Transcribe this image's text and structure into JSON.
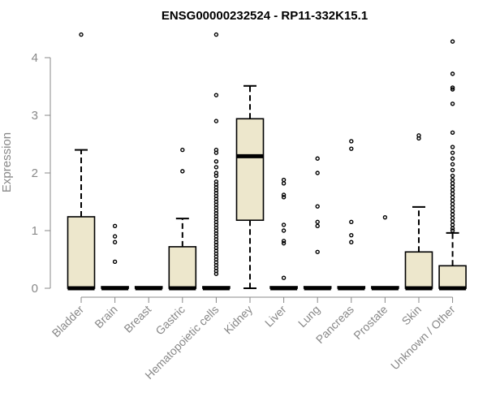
{
  "chart_data": {
    "type": "boxplot",
    "title": "ENSG00000232524 - RP11-332K15.1",
    "xlabel": "",
    "ylabel": "Expression",
    "ylim": [
      0,
      4.4
    ],
    "yticks": [
      0,
      1,
      2,
      3,
      4
    ],
    "box_fill": "#ede7cc",
    "grid": false,
    "categories": [
      "Bladder",
      "Brain",
      "Breast",
      "Gastric",
      "Hematopoietic cells",
      "Kidney",
      "Liver",
      "Lung",
      "Pancreas",
      "Prostate",
      "Skin",
      "Unknown / Other"
    ],
    "boxes": [
      {
        "name": "Bladder",
        "q1": 0,
        "median": 0,
        "q3": 1.24,
        "whisker_low": 0,
        "whisker_high": 2.4,
        "outliers": [
          4.4
        ]
      },
      {
        "name": "Brain",
        "q1": 0,
        "median": 0,
        "q3": 0,
        "whisker_low": 0,
        "whisker_high": 0,
        "outliers": [
          1.08,
          0.9,
          0.8,
          0.46
        ]
      },
      {
        "name": "Breast",
        "q1": 0,
        "median": 0,
        "q3": 0,
        "whisker_low": 0,
        "whisker_high": 0,
        "outliers": []
      },
      {
        "name": "Gastric",
        "q1": 0,
        "median": 0,
        "q3": 0.72,
        "whisker_low": 0,
        "whisker_high": 1.21,
        "outliers": [
          2.4,
          2.03
        ]
      },
      {
        "name": "Hematopoietic cells",
        "q1": 0,
        "median": 0,
        "q3": 0,
        "whisker_low": 0,
        "whisker_high": 0,
        "outliers": [
          4.4,
          3.35,
          2.9,
          2.4,
          2.35,
          2.2,
          2.1,
          2.0,
          1.95,
          1.85,
          1.8,
          1.75,
          1.7,
          1.65,
          1.6,
          1.55,
          1.5,
          1.45,
          1.4,
          1.35,
          1.3,
          1.25,
          1.2,
          1.15,
          1.1,
          1.05,
          1.0,
          0.95,
          0.9,
          0.85,
          0.8,
          0.75,
          0.7,
          0.65,
          0.6,
          0.55,
          0.5,
          0.45,
          0.4,
          0.35,
          0.3,
          0.25
        ]
      },
      {
        "name": "Kidney",
        "q1": 1.18,
        "median": 2.29,
        "q3": 2.94,
        "whisker_low": 0,
        "whisker_high": 3.51,
        "outliers": []
      },
      {
        "name": "Liver",
        "q1": 0,
        "median": 0,
        "q3": 0,
        "whisker_low": 0,
        "whisker_high": 0,
        "outliers": [
          1.88,
          1.82,
          1.62,
          1.58,
          1.1,
          1.0,
          0.82,
          0.78,
          0.18
        ]
      },
      {
        "name": "Lung",
        "q1": 0,
        "median": 0,
        "q3": 0,
        "whisker_low": 0,
        "whisker_high": 0,
        "outliers": [
          2.25,
          2.0,
          1.42,
          1.15,
          1.08,
          0.63
        ]
      },
      {
        "name": "Pancreas",
        "q1": 0,
        "median": 0,
        "q3": 0,
        "whisker_low": 0,
        "whisker_high": 0,
        "outliers": [
          2.55,
          2.42,
          1.15,
          0.92,
          0.8
        ]
      },
      {
        "name": "Prostate",
        "q1": 0,
        "median": 0,
        "q3": 0,
        "whisker_low": 0,
        "whisker_high": 0,
        "outliers": [
          1.23
        ]
      },
      {
        "name": "Skin",
        "q1": 0,
        "median": 0,
        "q3": 0.63,
        "whisker_low": 0,
        "whisker_high": 1.41,
        "outliers": [
          2.65,
          2.6
        ]
      },
      {
        "name": "Unknown / Other",
        "q1": 0,
        "median": 0,
        "q3": 0.39,
        "whisker_low": 0,
        "whisker_high": 0.96,
        "outliers": [
          4.28,
          3.72,
          3.48,
          3.45,
          3.2,
          2.7,
          2.45,
          2.35,
          2.25,
          2.15,
          2.05,
          1.95,
          1.88,
          1.82,
          1.76,
          1.7,
          1.64,
          1.58,
          1.52,
          1.46,
          1.4,
          1.34,
          1.28,
          1.22,
          1.16,
          1.1,
          1.04,
          1.0
        ]
      }
    ]
  }
}
